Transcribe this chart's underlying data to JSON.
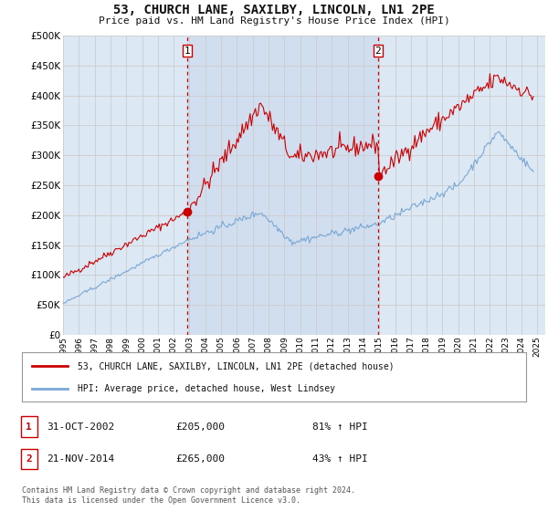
{
  "title": "53, CHURCH LANE, SAXILBY, LINCOLN, LN1 2PE",
  "subtitle": "Price paid vs. HM Land Registry's House Price Index (HPI)",
  "ytick_values": [
    0,
    50000,
    100000,
    150000,
    200000,
    250000,
    300000,
    350000,
    400000,
    450000,
    500000
  ],
  "ylim": [
    0,
    500000
  ],
  "xlim_start": 1995.0,
  "xlim_end": 2025.5,
  "marker1_x": 2002.833,
  "marker1_y": 205000,
  "marker2_x": 2014.917,
  "marker2_y": 265000,
  "vline1_x": 2002.833,
  "vline2_x": 2014.917,
  "legend_line1": "53, CHURCH LANE, SAXILBY, LINCOLN, LN1 2PE (detached house)",
  "legend_line2": "HPI: Average price, detached house, West Lindsey",
  "table_row1": [
    "1",
    "31-OCT-2002",
    "£205,000",
    "81% ↑ HPI"
  ],
  "table_row2": [
    "2",
    "21-NOV-2014",
    "£265,000",
    "43% ↑ HPI"
  ],
  "footer": "Contains HM Land Registry data © Crown copyright and database right 2024.\nThis data is licensed under the Open Government Licence v3.0.",
  "red_color": "#cc0000",
  "blue_color": "#7aa8d4",
  "vline_color": "#cc0000",
  "grid_color": "#cccccc",
  "background_color": "#ffffff",
  "plot_bg_color": "#dde8f5",
  "shade_bg_color": "#c8d8ee"
}
